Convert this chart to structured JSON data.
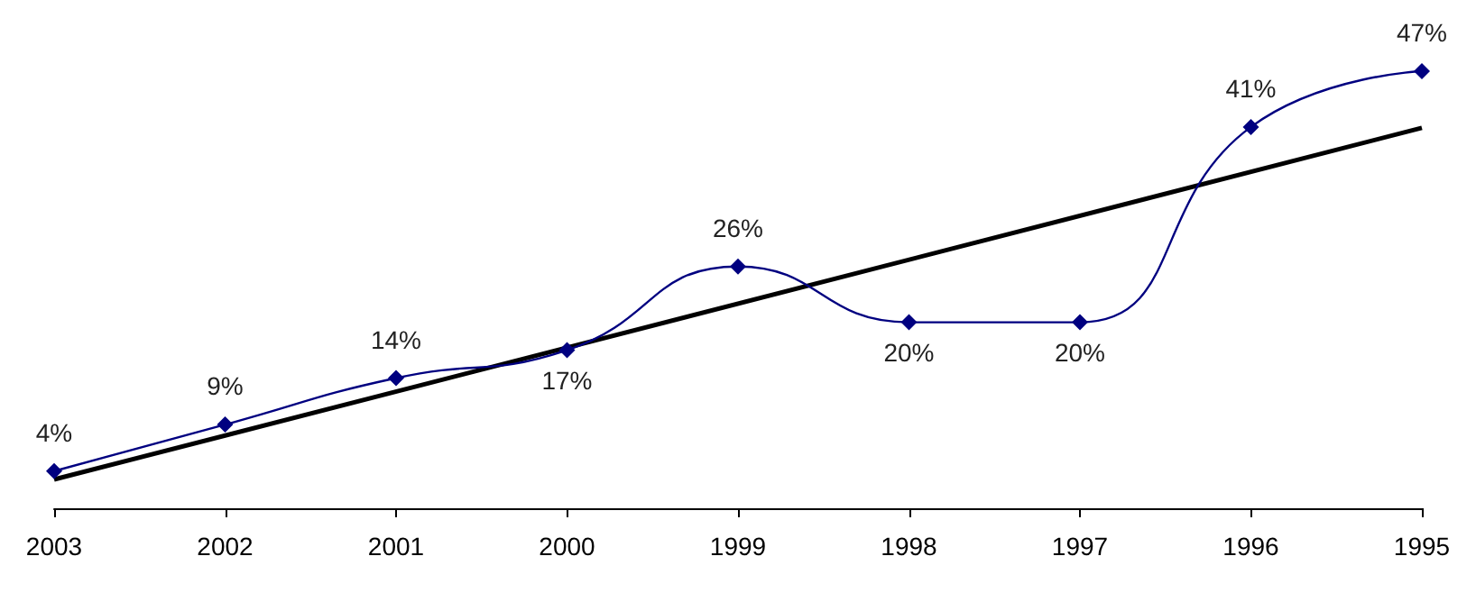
{
  "chart_data": {
    "type": "line",
    "categories": [
      "2003",
      "2002",
      "2001",
      "2000",
      "1999",
      "1998",
      "1997",
      "1996",
      "1995"
    ],
    "series": [
      {
        "color": "#000080",
        "values": [
          4,
          9,
          14,
          17,
          26,
          20,
          20,
          41,
          47
        ],
        "value_labels": [
          "4%",
          "9%",
          "14%",
          "17%",
          "26%",
          "20%",
          "20%",
          "41%",
          "47%"
        ],
        "marker": "diamond"
      },
      {
        "color": "#000000",
        "values": [
          3.1,
          null,
          null,
          null,
          null,
          null,
          null,
          null,
          40.9
        ],
        "marker": "none"
      }
    ],
    "tick_labels": "x",
    "grid": false
  }
}
